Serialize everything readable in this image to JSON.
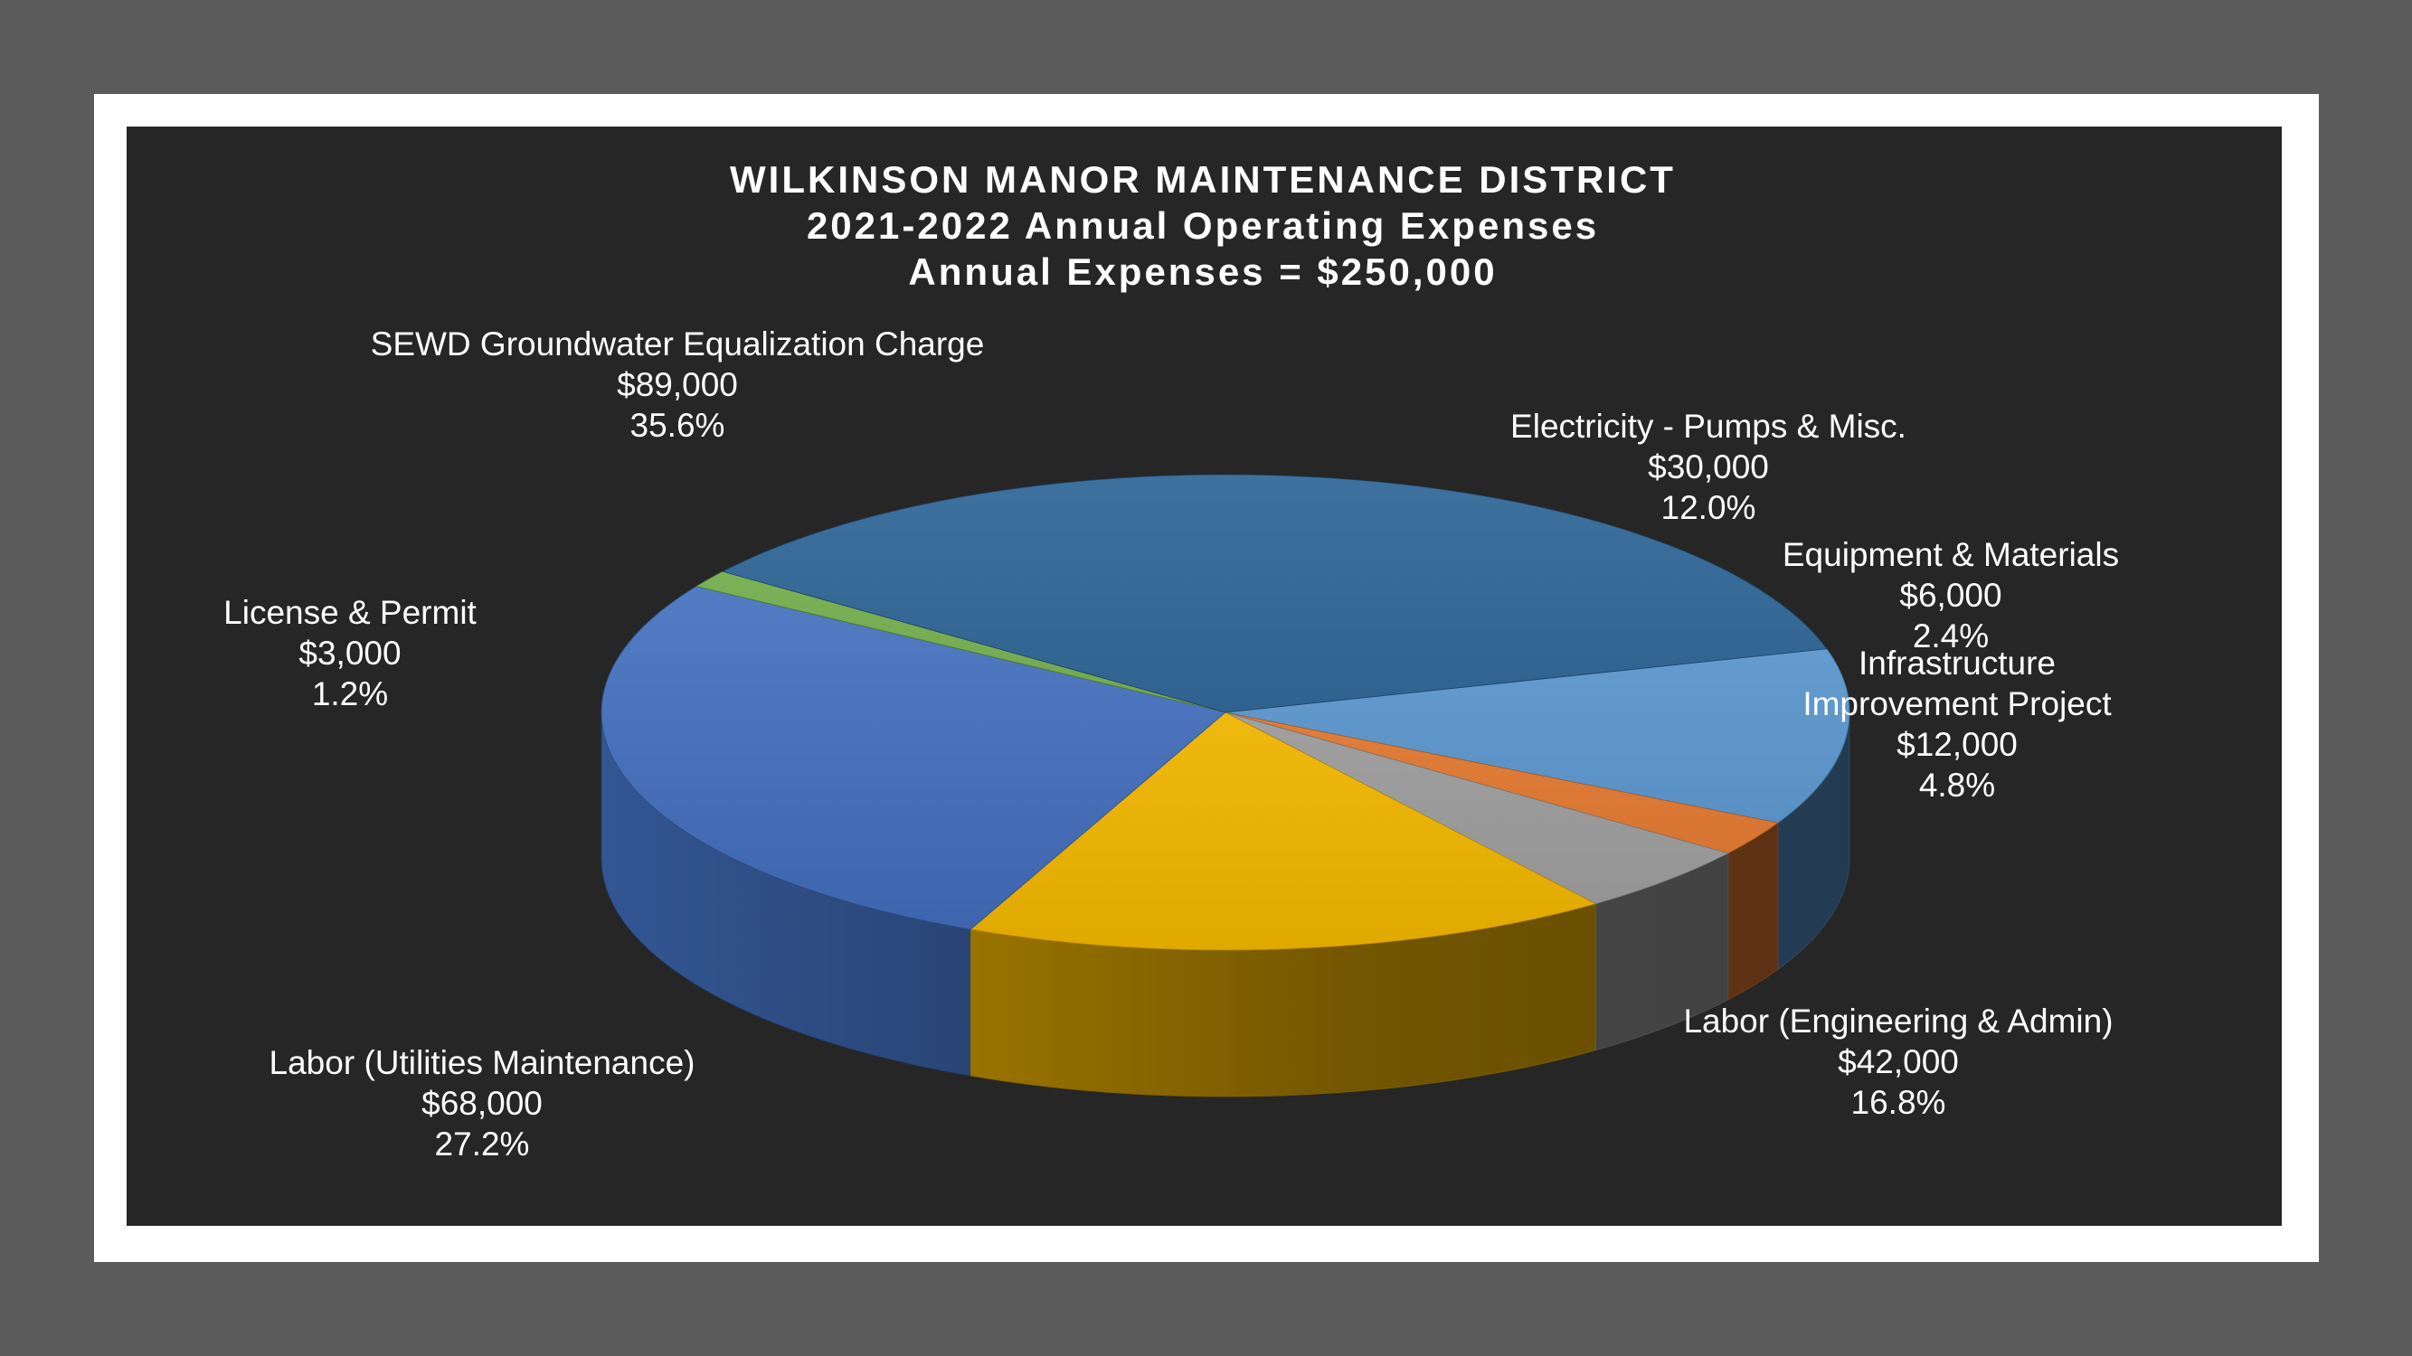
{
  "chart_data": {
    "type": "pie",
    "title": [
      "WILKINSON MANOR MAINTENANCE DISTRICT",
      "2021-2022 Annual Operating Expenses",
      "Annual Expenses = $250,000"
    ],
    "slices": [
      {
        "label": [
          "Electricity - Pumps & Misc."
        ],
        "value": 30000,
        "value_text": "$30,000",
        "percent": "12.0%",
        "color": "#5b9bd5"
      },
      {
        "label": [
          "Equipment & Materials"
        ],
        "value": 6000,
        "value_text": "$6,000",
        "percent": "2.4%",
        "color": "#ed7d31"
      },
      {
        "label": [
          "Infrastructure",
          "Improvement Project"
        ],
        "value": 12000,
        "value_text": "$12,000",
        "percent": "4.8%",
        "color": "#a5a5a5"
      },
      {
        "label": [
          "Labor (Engineering & Admin)"
        ],
        "value": 42000,
        "value_text": "$42,000",
        "percent": "16.8%",
        "color": "#ffc000"
      },
      {
        "label": [
          "Labor (Utilities Maintenance)"
        ],
        "value": 68000,
        "value_text": "$68,000",
        "percent": "27.2%",
        "color": "#4472c4"
      },
      {
        "label": [
          "License & Permit"
        ],
        "value": 3000,
        "value_text": "$3,000",
        "percent": "1.2%",
        "color": "#70ad47"
      },
      {
        "label": [
          "SEWD Groundwater Equalization Charge"
        ],
        "value": 89000,
        "value_text": "$89,000",
        "percent": "35.6%",
        "color": "#255e91"
      }
    ]
  }
}
